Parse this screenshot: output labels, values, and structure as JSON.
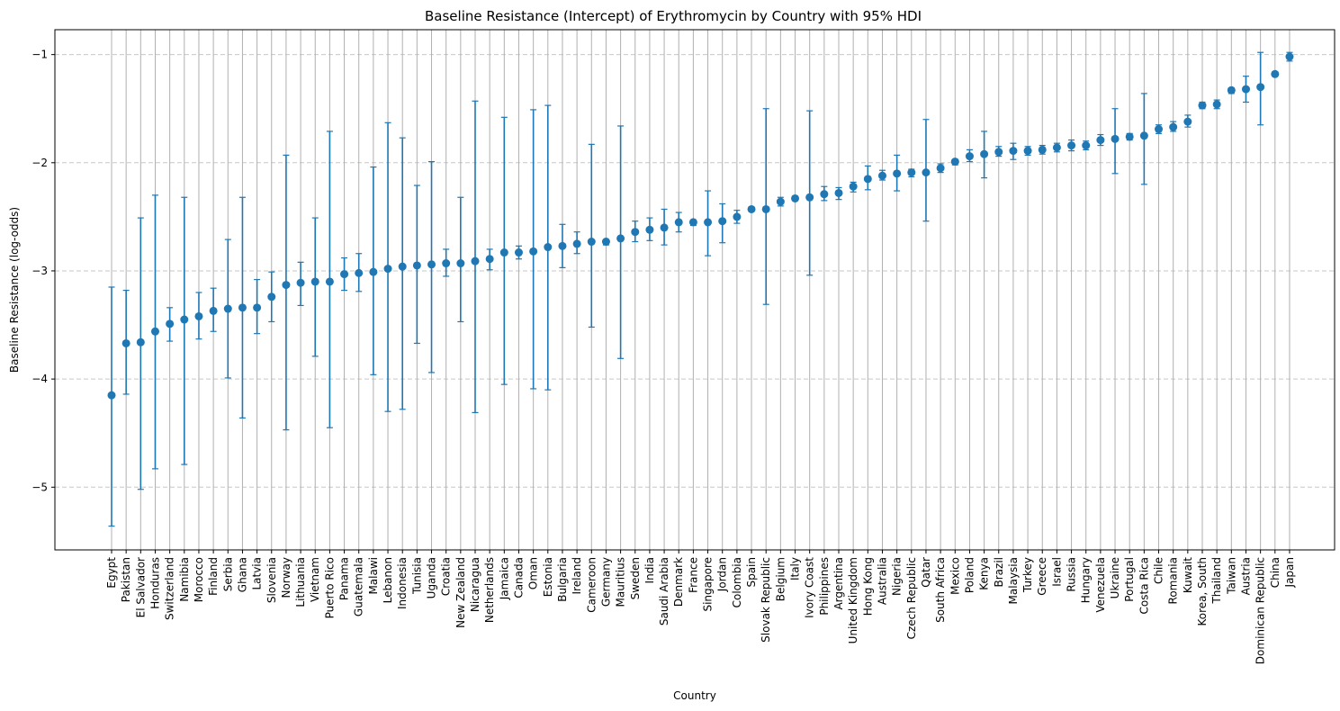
{
  "chart_data": {
    "type": "errorbar",
    "title": "Baseline Resistance (Intercept) of Erythromycin by Country with 95% HDI",
    "xlabel": "Country",
    "ylabel": "Baseline Resistance (log-odds)",
    "ylim": [
      -5.58,
      -0.77
    ],
    "yticks": [
      -5,
      -4,
      -3,
      -2,
      -1
    ],
    "grid": {
      "x": "solid",
      "y": "dashed"
    },
    "marker_color": "#1f77b4",
    "points": [
      {
        "country": "Egypt",
        "mean": -4.15,
        "low": -5.36,
        "high": -3.15
      },
      {
        "country": "Pakistan",
        "mean": -3.67,
        "low": -4.14,
        "high": -3.18
      },
      {
        "country": "El Salvador",
        "mean": -3.66,
        "low": -5.02,
        "high": -2.51
      },
      {
        "country": "Honduras",
        "mean": -3.56,
        "low": -4.83,
        "high": -2.3
      },
      {
        "country": "Switzerland",
        "mean": -3.49,
        "low": -3.65,
        "high": -3.34
      },
      {
        "country": "Namibia",
        "mean": -3.45,
        "low": -4.79,
        "high": -2.32
      },
      {
        "country": "Morocco",
        "mean": -3.42,
        "low": -3.63,
        "high": -3.2
      },
      {
        "country": "Finland",
        "mean": -3.37,
        "low": -3.56,
        "high": -3.16
      },
      {
        "country": "Serbia",
        "mean": -3.35,
        "low": -3.99,
        "high": -2.71
      },
      {
        "country": "Ghana",
        "mean": -3.34,
        "low": -4.36,
        "high": -2.32
      },
      {
        "country": "Latvia",
        "mean": -3.34,
        "low": -3.58,
        "high": -3.08
      },
      {
        "country": "Slovenia",
        "mean": -3.24,
        "low": -3.47,
        "high": -3.01
      },
      {
        "country": "Norway",
        "mean": -3.13,
        "low": -4.47,
        "high": -1.93
      },
      {
        "country": "Lithuania",
        "mean": -3.11,
        "low": -3.32,
        "high": -2.92
      },
      {
        "country": "Vietnam",
        "mean": -3.1,
        "low": -3.79,
        "high": -2.51
      },
      {
        "country": "Puerto Rico",
        "mean": -3.1,
        "low": -4.45,
        "high": -1.71
      },
      {
        "country": "Panama",
        "mean": -3.03,
        "low": -3.18,
        "high": -2.88
      },
      {
        "country": "Guatemala",
        "mean": -3.02,
        "low": -3.19,
        "high": -2.84
      },
      {
        "country": "Malawi",
        "mean": -3.01,
        "low": -3.96,
        "high": -2.04
      },
      {
        "country": "Lebanon",
        "mean": -2.98,
        "low": -4.3,
        "high": -1.63
      },
      {
        "country": "Indonesia",
        "mean": -2.96,
        "low": -4.28,
        "high": -1.77
      },
      {
        "country": "Tunisia",
        "mean": -2.95,
        "low": -3.67,
        "high": -2.21
      },
      {
        "country": "Uganda",
        "mean": -2.94,
        "low": -3.94,
        "high": -1.99
      },
      {
        "country": "Croatia",
        "mean": -2.93,
        "low": -3.05,
        "high": -2.8
      },
      {
        "country": "New Zealand",
        "mean": -2.93,
        "low": -3.47,
        "high": -2.32
      },
      {
        "country": "Nicaragua",
        "mean": -2.91,
        "low": -4.31,
        "high": -1.43
      },
      {
        "country": "Netherlands",
        "mean": -2.89,
        "low": -2.99,
        "high": -2.8
      },
      {
        "country": "Jamaica",
        "mean": -2.83,
        "low": -4.05,
        "high": -1.58
      },
      {
        "country": "Canada",
        "mean": -2.83,
        "low": -2.89,
        "high": -2.77
      },
      {
        "country": "Oman",
        "mean": -2.82,
        "low": -4.09,
        "high": -1.51
      },
      {
        "country": "Estonia",
        "mean": -2.78,
        "low": -4.1,
        "high": -1.47
      },
      {
        "country": "Bulgaria",
        "mean": -2.77,
        "low": -2.97,
        "high": -2.57
      },
      {
        "country": "Ireland",
        "mean": -2.75,
        "low": -2.84,
        "high": -2.64
      },
      {
        "country": "Cameroon",
        "mean": -2.73,
        "low": -3.52,
        "high": -1.83
      },
      {
        "country": "Germany",
        "mean": -2.73,
        "low": -2.76,
        "high": -2.71
      },
      {
        "country": "Mauritius",
        "mean": -2.7,
        "low": -3.81,
        "high": -1.66
      },
      {
        "country": "Sweden",
        "mean": -2.64,
        "low": -2.73,
        "high": -2.54
      },
      {
        "country": "India",
        "mean": -2.62,
        "low": -2.72,
        "high": -2.51
      },
      {
        "country": "Saudi Arabia",
        "mean": -2.6,
        "low": -2.76,
        "high": -2.43
      },
      {
        "country": "Denmark",
        "mean": -2.55,
        "low": -2.64,
        "high": -2.46
      },
      {
        "country": "France",
        "mean": -2.55,
        "low": -2.58,
        "high": -2.53
      },
      {
        "country": "Singapore",
        "mean": -2.55,
        "low": -2.86,
        "high": -2.26
      },
      {
        "country": "Jordan",
        "mean": -2.54,
        "low": -2.74,
        "high": -2.38
      },
      {
        "country": "Colombia",
        "mean": -2.5,
        "low": -2.56,
        "high": -2.44
      },
      {
        "country": "Spain",
        "mean": -2.43,
        "low": -2.45,
        "high": -2.42
      },
      {
        "country": "Slovak Republic",
        "mean": -2.43,
        "low": -3.31,
        "high": -1.5
      },
      {
        "country": "Belgium",
        "mean": -2.36,
        "low": -2.4,
        "high": -2.32
      },
      {
        "country": "Italy",
        "mean": -2.33,
        "low": -2.34,
        "high": -2.31
      },
      {
        "country": "Ivory Coast",
        "mean": -2.32,
        "low": -3.04,
        "high": -1.52
      },
      {
        "country": "Philippines",
        "mean": -2.29,
        "low": -2.35,
        "high": -2.22
      },
      {
        "country": "Argentina",
        "mean": -2.28,
        "low": -2.34,
        "high": -2.23
      },
      {
        "country": "United Kingdom",
        "mean": -2.22,
        "low": -2.27,
        "high": -2.18
      },
      {
        "country": "Hong Kong",
        "mean": -2.15,
        "low": -2.25,
        "high": -2.03
      },
      {
        "country": "Australia",
        "mean": -2.12,
        "low": -2.16,
        "high": -2.07
      },
      {
        "country": "Nigeria",
        "mean": -2.1,
        "low": -2.26,
        "high": -1.93
      },
      {
        "country": "Czech Republic",
        "mean": -2.09,
        "low": -2.13,
        "high": -2.06
      },
      {
        "country": "Qatar",
        "mean": -2.09,
        "low": -2.54,
        "high": -1.6
      },
      {
        "country": "South Africa",
        "mean": -2.05,
        "low": -2.09,
        "high": -2.01
      },
      {
        "country": "Mexico",
        "mean": -1.99,
        "low": -2.02,
        "high": -1.97
      },
      {
        "country": "Poland",
        "mean": -1.94,
        "low": -1.99,
        "high": -1.88
      },
      {
        "country": "Kenya",
        "mean": -1.92,
        "low": -2.14,
        "high": -1.71
      },
      {
        "country": "Brazil",
        "mean": -1.9,
        "low": -1.94,
        "high": -1.85
      },
      {
        "country": "Malaysia",
        "mean": -1.89,
        "low": -1.97,
        "high": -1.82
      },
      {
        "country": "Turkey",
        "mean": -1.89,
        "low": -1.93,
        "high": -1.85
      },
      {
        "country": "Greece",
        "mean": -1.88,
        "low": -1.92,
        "high": -1.84
      },
      {
        "country": "Israel",
        "mean": -1.86,
        "low": -1.9,
        "high": -1.82
      },
      {
        "country": "Russia",
        "mean": -1.84,
        "low": -1.89,
        "high": -1.79
      },
      {
        "country": "Hungary",
        "mean": -1.84,
        "low": -1.88,
        "high": -1.8
      },
      {
        "country": "Venezuela",
        "mean": -1.79,
        "low": -1.84,
        "high": -1.74
      },
      {
        "country": "Ukraine",
        "mean": -1.78,
        "low": -2.1,
        "high": -1.5
      },
      {
        "country": "Portugal",
        "mean": -1.76,
        "low": -1.79,
        "high": -1.73
      },
      {
        "country": "Costa Rica",
        "mean": -1.75,
        "low": -2.2,
        "high": -1.36
      },
      {
        "country": "Chile",
        "mean": -1.69,
        "low": -1.73,
        "high": -1.65
      },
      {
        "country": "Romania",
        "mean": -1.67,
        "low": -1.71,
        "high": -1.62
      },
      {
        "country": "Kuwait",
        "mean": -1.62,
        "low": -1.67,
        "high": -1.56
      },
      {
        "country": "Korea, South",
        "mean": -1.47,
        "low": -1.5,
        "high": -1.44
      },
      {
        "country": "Thailand",
        "mean": -1.46,
        "low": -1.5,
        "high": -1.42
      },
      {
        "country": "Taiwan",
        "mean": -1.33,
        "low": -1.36,
        "high": -1.31
      },
      {
        "country": "Austria",
        "mean": -1.32,
        "low": -1.44,
        "high": -1.2
      },
      {
        "country": "Dominican Republic",
        "mean": -1.3,
        "low": -1.65,
        "high": -0.98
      },
      {
        "country": "China",
        "mean": -1.18,
        "low": -1.2,
        "high": -1.16
      },
      {
        "country": "Japan",
        "mean": -1.02,
        "low": -1.06,
        "high": -0.98
      }
    ]
  }
}
